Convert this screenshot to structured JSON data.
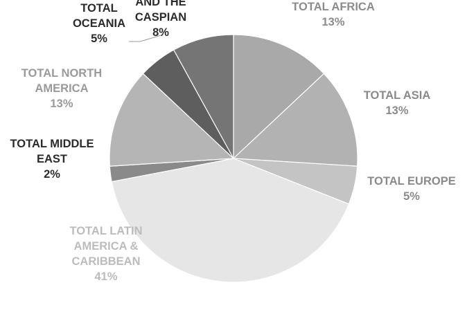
{
  "chart_data": {
    "type": "pie",
    "title": "",
    "slices": [
      {
        "label": "TOTAL AFRICA",
        "value": 13,
        "value_label": "13%",
        "color": "#a9a9a9",
        "label_color": "#8c8c8c"
      },
      {
        "label": "TOTAL ASIA",
        "value": 13,
        "value_label": "13%",
        "color": "#b2b2b2",
        "label_color": "#8a8a8a"
      },
      {
        "label": "TOTAL EUROPE",
        "value": 5,
        "value_label": "5%",
        "color": "#c4c4c4",
        "label_color": "#8a8a8a"
      },
      {
        "label": "TOTAL LATIN AMERICA & CARIBBEAN",
        "value": 41,
        "value_label": "41%",
        "color": "#e6e6e6",
        "label_color": "#bcbcbc"
      },
      {
        "label": "TOTAL MIDDLE EAST",
        "value": 2,
        "value_label": "2%",
        "color": "#8a8a8a",
        "label_color": "#2b2b2b"
      },
      {
        "label": "TOTAL NORTH AMERICA",
        "value": 13,
        "value_label": "13%",
        "color": "#b5b5b5",
        "label_color": "#9a9a9a"
      },
      {
        "label": "TOTAL OCEANIA",
        "value": 5,
        "value_label": "5%",
        "color": "#5e5e5e",
        "label_color": "#2b2b2b"
      },
      {
        "label": "TOTAL RUSSIA AND THE CASPIAN",
        "value": 8,
        "value_label": "8%",
        "color": "#757575",
        "label_color": "#2b2b2b"
      }
    ],
    "legend": "none",
    "slice_border_color": "#ffffff"
  }
}
